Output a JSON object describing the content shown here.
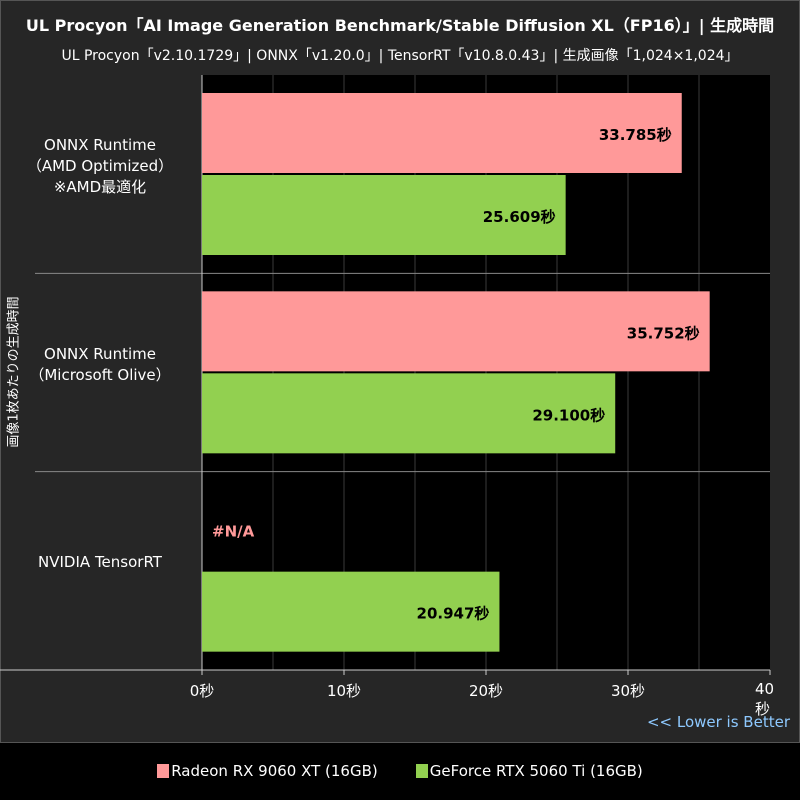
{
  "chart_data": {
    "type": "bar",
    "orientation": "horizontal",
    "title": "UL Procyon「AI Image Generation Benchmark/Stable Diffusion XL（FP16）」| 生成時間",
    "subtitle": "UL Procyon「v2.10.1729」| ONNX「v1.20.0」| TensorRT「v10.8.0.43」| 生成画像「1,024×1,024」",
    "ylabel": "画像1枚あたりの生成時間",
    "categories": [
      [
        "ONNX Runtime",
        "（AMD Optimized）",
        "※AMD最適化"
      ],
      [
        "ONNX Runtime",
        "（Microsoft Olive）"
      ],
      [
        "NVIDIA TensorRT"
      ]
    ],
    "series": [
      {
        "name": "Radeon RX 9060 XT (16GB)",
        "color": "#ff9999",
        "values": [
          33.785,
          35.752,
          null
        ],
        "labels": [
          "33.785秒",
          "35.752秒",
          "#N/A"
        ]
      },
      {
        "name": "GeForce RTX 5060 Ti (16GB)",
        "color": "#92d050",
        "values": [
          25.609,
          29.1,
          20.947
        ],
        "labels": [
          "25.609秒",
          "29.100秒",
          "20.947秒"
        ]
      }
    ],
    "xlim": [
      0,
      40
    ],
    "xticks": [
      0,
      10,
      20,
      30,
      40
    ],
    "xtick_labels": [
      "0秒",
      "10秒",
      "20秒",
      "30秒",
      "40秒"
    ],
    "grid": true,
    "legend": "bottom",
    "annotation": "<< Lower is Better"
  }
}
